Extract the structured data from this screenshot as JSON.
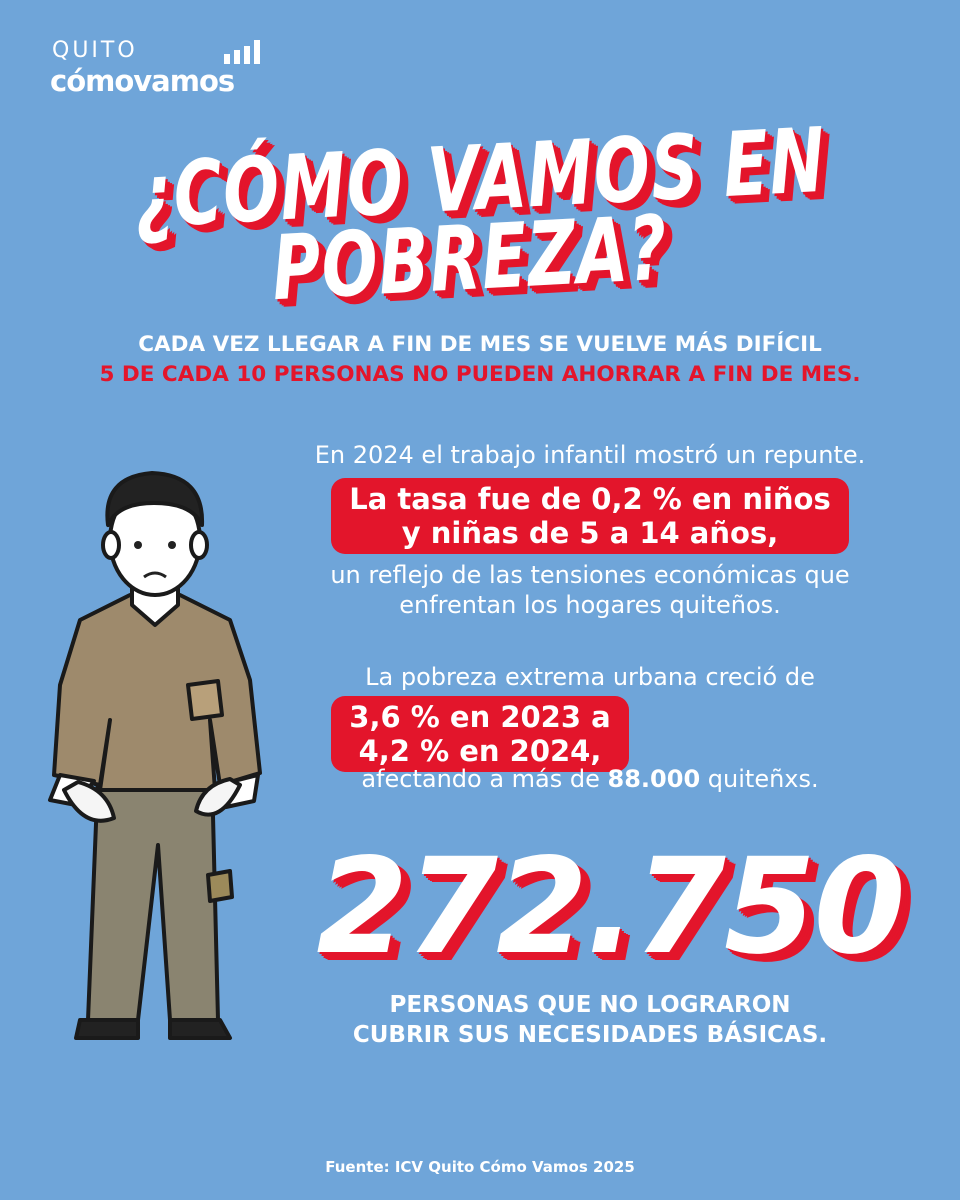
{
  "logo": {
    "top": "QUITO",
    "bottom": "cómovamos"
  },
  "title": {
    "line1": "¿CÓMO VAMOS EN",
    "line2": "POBREZA?"
  },
  "subtitle": {
    "line1": "CADA VEZ LLEGAR A FIN DE MES SE VUELVE MÁS DIFÍCIL",
    "line2": "5 DE CADA 10 PERSONAS NO PUEDEN AHORRAR A FIN DE MES."
  },
  "block1": {
    "intro": "En 2024 el trabajo infantil mostró un repunte.",
    "highlight": [
      "La tasa fue de 0,2 % en niños",
      "y niñas de 5 a 14 años,"
    ],
    "rest": [
      "un reflejo de las tensiones económicas que",
      "enfrentan los hogares quiteños."
    ]
  },
  "block2": {
    "intro": "La pobreza extrema urbana creció de",
    "highlight": [
      "3,6 % en 2023 a",
      "4,2 % en 2024,"
    ],
    "rest": {
      "before": "afectando a más de",
      "bold": "88.000",
      "after": "quiteñxs."
    }
  },
  "big_number": "272.750",
  "caption": [
    "PERSONAS QUE NO LOGRARON",
    "CUBRIR SUS NECESIDADES BÁSICAS."
  ],
  "source": "Fuente: ICV Quito Cómo Vamos 2025"
}
